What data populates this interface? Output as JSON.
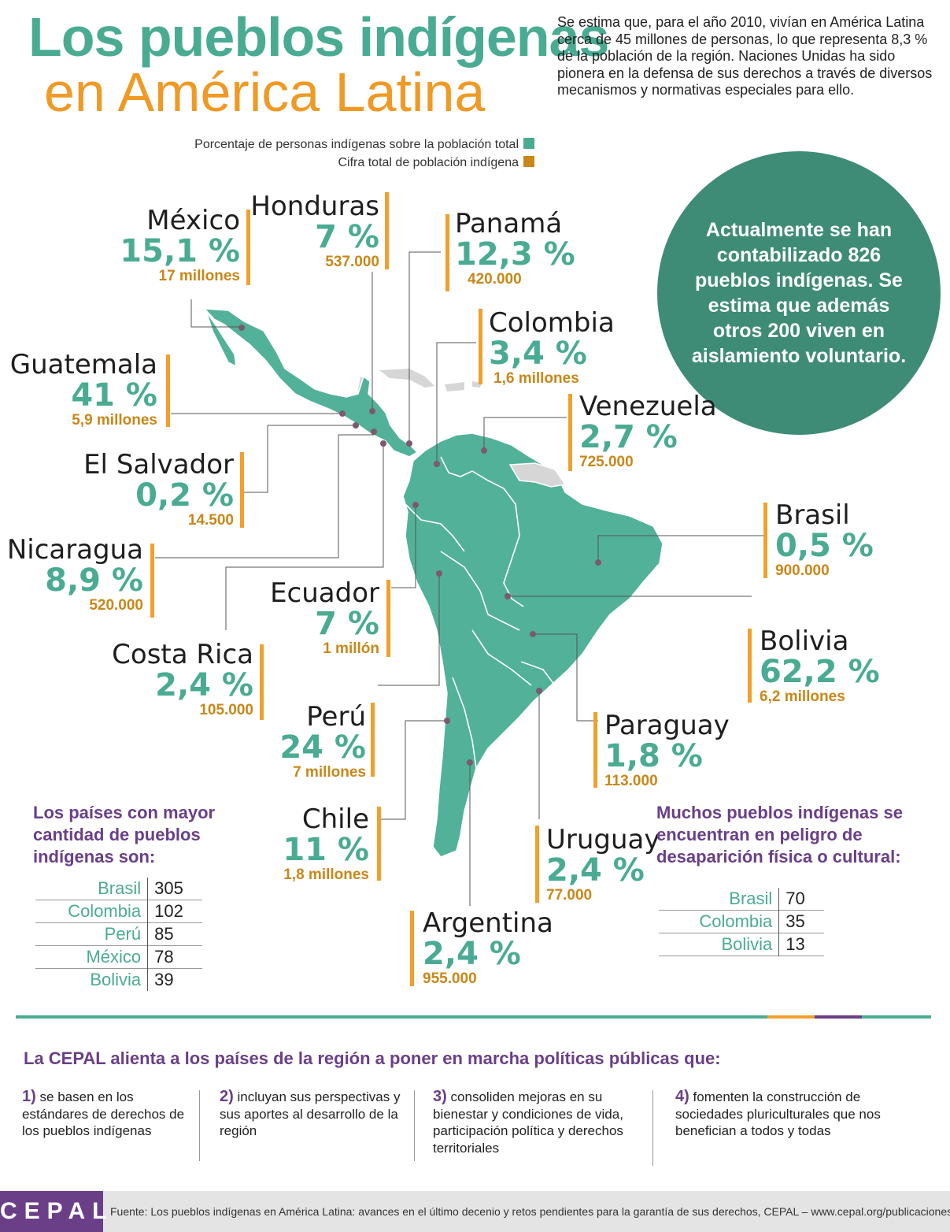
{
  "title": {
    "line1": "Los pueblos indígenas",
    "line2": "en América Latina"
  },
  "intro": "Se estima que, para el año 2010, vivían en América Latina cerca de 45 millones de personas, lo que representa 8,3 % de la población de la región. Naciones Unidas ha sido pionera en la defensa de sus derechos a través de diversos mecanismos y normativas especiales para ello.",
  "legend": {
    "percent_label": "Porcentaje de personas indígenas sobre la población total",
    "total_label": "Cifra total de población indígena",
    "percent_color": "#4aab93",
    "total_color": "#c98718"
  },
  "bubble": "Actualmente se han contabilizado 826 pueblos indígenas. Se estima que además otros 200 viven en aislamiento voluntario.",
  "countries": {
    "mexico": {
      "name": "México",
      "pct": "15,1 %",
      "pop": "17 millones"
    },
    "honduras": {
      "name": "Honduras",
      "pct": "7 %",
      "pop": "537.000"
    },
    "panama": {
      "name": "Panamá",
      "pct": "12,3 %",
      "pop": "420.000"
    },
    "colombia": {
      "name": "Colombia",
      "pct": "3,4 %",
      "pop": "1,6 millones"
    },
    "guatemala": {
      "name": "Guatemala",
      "pct": "41 %",
      "pop": "5,9 millones"
    },
    "venezuela": {
      "name": "Venezuela",
      "pct": "2,7 %",
      "pop": "725.000"
    },
    "el_salvador": {
      "name": "El Salvador",
      "pct": "0,2 %",
      "pop": "14.500"
    },
    "brasil": {
      "name": "Brasil",
      "pct": "0,5 %",
      "pop": "900.000"
    },
    "nicaragua": {
      "name": "Nicaragua",
      "pct": "8,9 %",
      "pop": "520.000"
    },
    "ecuador": {
      "name": "Ecuador",
      "pct": "7 %",
      "pop": "1 millón"
    },
    "bolivia": {
      "name": "Bolivia",
      "pct": "62,2 %",
      "pop": "6,2 millones"
    },
    "costa_rica": {
      "name": "Costa Rica",
      "pct": "2,4 %",
      "pop": "105.000"
    },
    "peru": {
      "name": "Perú",
      "pct": "24 %",
      "pop": "7 millones"
    },
    "paraguay": {
      "name": "Paraguay",
      "pct": "1,8 %",
      "pop": "113.000"
    },
    "chile": {
      "name": "Chile",
      "pct": "11 %",
      "pop": "1,8 millones"
    },
    "uruguay": {
      "name": "Uruguay",
      "pct": "2,4 %",
      "pop": "77.000"
    },
    "argentina": {
      "name": "Argentina",
      "pct": "2,4 %",
      "pop": "955.000"
    }
  },
  "most_peoples": {
    "title": "Los países con mayor cantidad de pueblos indígenas son:",
    "rows": [
      {
        "country": "Brasil",
        "value": "305"
      },
      {
        "country": "Colombia",
        "value": "102"
      },
      {
        "country": "Perú",
        "value": "85"
      },
      {
        "country": "México",
        "value": "78"
      },
      {
        "country": "Bolivia",
        "value": "39"
      }
    ]
  },
  "danger": {
    "title": "Muchos pueblos indígenas se encuentran en peligro de desaparición física o cultural:",
    "rows": [
      {
        "country": "Brasil",
        "value": "70"
      },
      {
        "country": "Colombia",
        "value": "35"
      },
      {
        "country": "Bolivia",
        "value": "13"
      }
    ]
  },
  "policies": {
    "title": "La CEPAL alienta a los países de la región a poner en marcha políticas públicas que:",
    "items": [
      {
        "num": "1)",
        "text": "se basen en los estándares de derechos de los pueblos indígenas"
      },
      {
        "num": "2)",
        "text": "incluyan sus perspectivas y sus aportes al desarrollo de la región"
      },
      {
        "num": "3)",
        "text": "consoliden mejoras en su bienestar y condiciones de vida, participación política y derechos territoriales"
      },
      {
        "num": "4)",
        "text": "fomenten la construcción de sociedades pluriculturales que nos benefician a todos y todas"
      }
    ]
  },
  "footer": {
    "logo": "CEPAL",
    "source": "Fuente: Los pueblos indígenas en América Latina: avances en el último decenio y retos pendientes para la garantía de sus derechos, CEPAL – www.cepal.org/publicaciones"
  }
}
